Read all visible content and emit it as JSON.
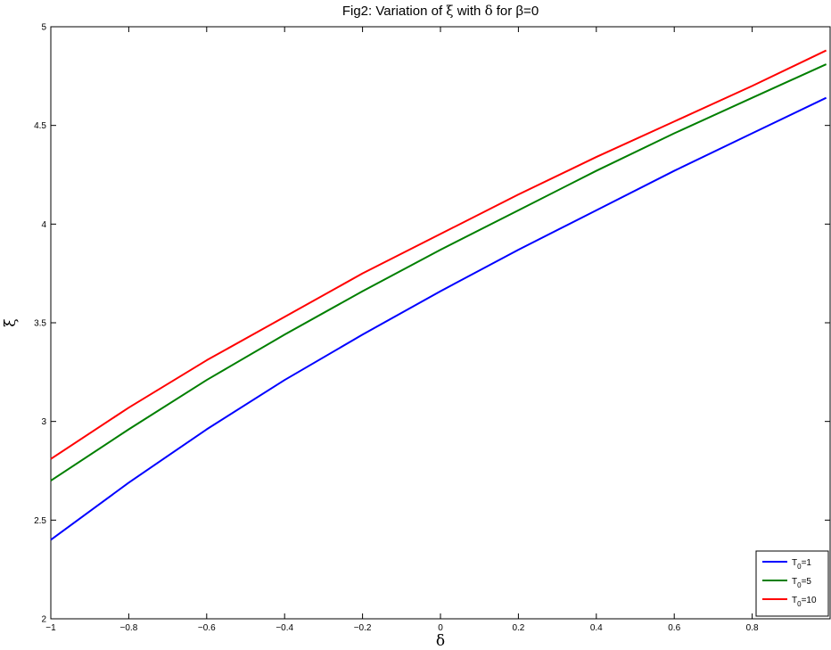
{
  "chart_data": {
    "type": "line",
    "title": "Fig2: Variation of ξ with δ for β=0",
    "title_parts": {
      "prefix": "Fig2: Variation of ",
      "symbol1": "ξ",
      "middle": " with ",
      "symbol2": "δ",
      "suffix": " for β=0"
    },
    "xlabel": "δ",
    "ylabel": "ξ",
    "xlim": [
      -1,
      1
    ],
    "ylim": [
      2,
      5
    ],
    "x_ticks": [
      -1,
      -0.8,
      -0.6,
      -0.4,
      -0.2,
      0,
      0.2,
      0.4,
      0.6,
      0.8
    ],
    "x_tick_labels": [
      "−1",
      "−0.8",
      "−0.6",
      "−0.4",
      "−0.2",
      "0",
      "0.2",
      "0.4",
      "0.6",
      "0.8"
    ],
    "y_ticks": [
      2,
      2.5,
      3,
      3.5,
      4,
      4.5,
      5
    ],
    "y_tick_labels": [
      "2",
      "2.5",
      "3",
      "3.5",
      "4",
      "4.5",
      "5"
    ],
    "grid": false,
    "legend_position": "bottom-right",
    "x": [
      -1,
      -0.8,
      -0.6,
      -0.4,
      -0.2,
      0,
      0.2,
      0.4,
      0.6,
      0.8,
      0.99
    ],
    "series": [
      {
        "name": "T0=1",
        "legend_main": "T",
        "legend_sub": "0",
        "legend_suffix": "=1",
        "color": "#0000ff",
        "values": [
          2.4,
          2.69,
          2.96,
          3.21,
          3.44,
          3.66,
          3.87,
          4.07,
          4.27,
          4.46,
          4.64
        ]
      },
      {
        "name": "T0=5",
        "legend_main": "T",
        "legend_sub": "0",
        "legend_suffix": "=5",
        "color": "#007f00",
        "values": [
          2.7,
          2.96,
          3.21,
          3.44,
          3.66,
          3.87,
          4.07,
          4.27,
          4.46,
          4.64,
          4.81
        ]
      },
      {
        "name": "T0=10",
        "legend_main": "T",
        "legend_sub": "0",
        "legend_suffix": "=10",
        "color": "#ff0000",
        "values": [
          2.81,
          3.07,
          3.31,
          3.53,
          3.75,
          3.95,
          4.15,
          4.34,
          4.52,
          4.7,
          4.88
        ]
      }
    ]
  }
}
